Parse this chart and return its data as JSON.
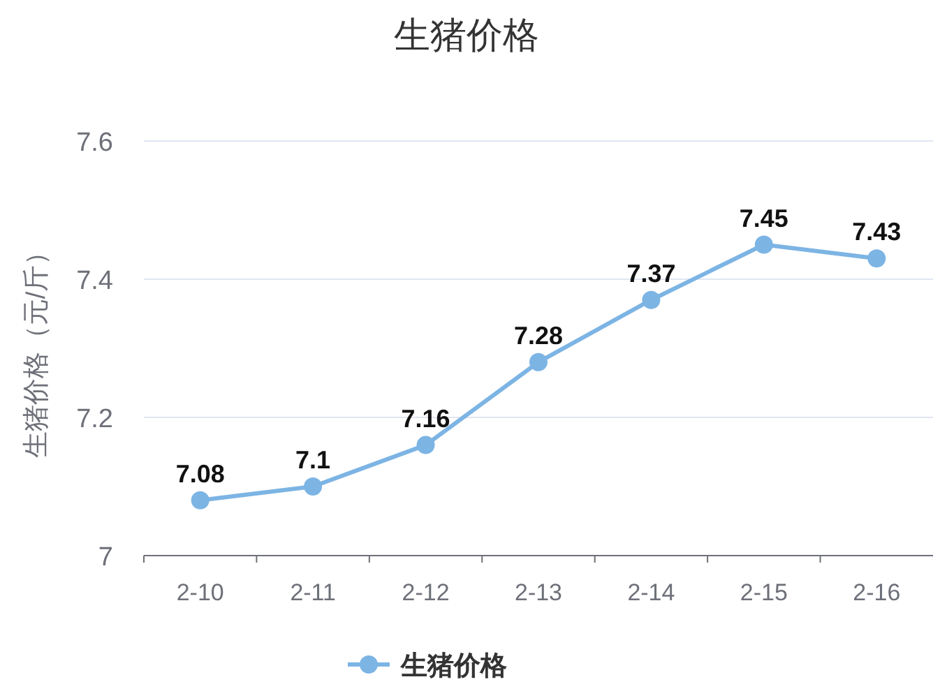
{
  "chart_data": {
    "type": "line",
    "title": "生猪价格",
    "ylabel": "生猪价格（元/斤）",
    "categories": [
      "2-10",
      "2-11",
      "2-12",
      "2-13",
      "2-14",
      "2-15",
      "2-16"
    ],
    "series": [
      {
        "name": "生猪价格",
        "color": "#7cb4e4",
        "values": [
          7.08,
          7.1,
          7.16,
          7.28,
          7.37,
          7.45,
          7.43
        ]
      }
    ],
    "ylim": [
      7,
      7.6
    ],
    "yticks": [
      7,
      7.2,
      7.4,
      7.6
    ],
    "grid": "y",
    "legend": "bottom",
    "marker": "circle",
    "line_style": "solid",
    "data_labels": true
  }
}
